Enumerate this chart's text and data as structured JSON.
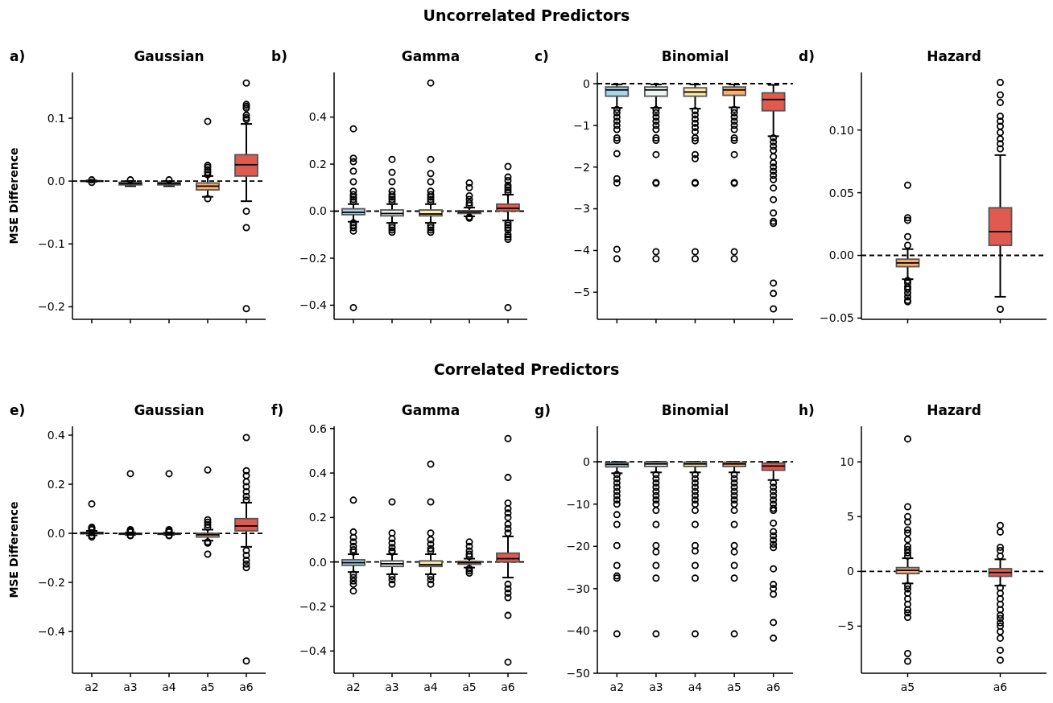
{
  "chart_data": [
    {
      "type": "box",
      "title": "Gaussian",
      "ylabel": "MSE Difference",
      "annotations": [
        "a)",
        "Uncorrelated Predictors"
      ],
      "tick_labels": "y",
      "categories": [
        null,
        null,
        null,
        null,
        null
      ],
      "colors": [
        "#a6d4e8",
        "#eef5f0",
        "#fde9a9",
        "#fdae6b",
        "#e05a50"
      ],
      "ylim": [
        -0.22,
        0.173
      ],
      "yticks": [
        {
          "value": -0.2,
          "label": "−0.2"
        },
        {
          "value": -0.1,
          "label": "−0.1"
        },
        {
          "value": 0,
          "label": "0.0"
        },
        {
          "value": 0.1,
          "label": "0.1"
        }
      ],
      "ref_lines": [
        {
          "axis": "y",
          "value": 0,
          "line_style": "dashed"
        }
      ],
      "boxes": [
        {
          "low": -0.001,
          "q1": -0.0005,
          "median": 0,
          "q3": 0.0005,
          "high": 0.001,
          "outliers": [
            0.002,
            -0.002
          ]
        },
        {
          "low": -0.008,
          "q1": -0.006,
          "median": -0.004,
          "q3": -0.002,
          "high": 0.0,
          "outliers": [
            0.002
          ]
        },
        {
          "low": -0.008,
          "q1": -0.006,
          "median": -0.004,
          "q3": -0.002,
          "high": 0.0,
          "outliers": [
            0.002
          ]
        },
        {
          "low": -0.025,
          "q1": -0.014,
          "median": -0.008,
          "q3": -0.003,
          "high": 0.008,
          "outliers": [
            0.095,
            0.025,
            0.022,
            0.018,
            0.014,
            0.01,
            -0.028
          ]
        },
        {
          "low": -0.032,
          "q1": 0.008,
          "median": 0.026,
          "q3": 0.042,
          "high": 0.091,
          "outliers": [
            0.156,
            0.122,
            0.119,
            0.116,
            0.105,
            0.101,
            0.098,
            -0.048,
            -0.074,
            -0.203
          ]
        }
      ]
    },
    {
      "type": "box",
      "title": "Gamma",
      "annotations": [
        "b)"
      ],
      "tick_labels": "y",
      "categories": [
        null,
        null,
        null,
        null,
        null
      ],
      "colors": [
        "#a6d4e8",
        "#eef5f0",
        "#fde9a9",
        "#fdae6b",
        "#e05a50"
      ],
      "ylim": [
        -0.46,
        0.59
      ],
      "yticks": [
        {
          "value": -0.4,
          "label": "−0.4"
        },
        {
          "value": -0.2,
          "label": "−0.2"
        },
        {
          "value": 0,
          "label": "0.0"
        },
        0.2,
        0.4
      ],
      "ref_lines": [
        {
          "axis": "y",
          "value": 0,
          "line_style": "dashed"
        }
      ],
      "boxes": [
        {
          "low": -0.045,
          "q1": -0.015,
          "median": -0.005,
          "q3": 0.01,
          "high": 0.03,
          "outliers": [
            0.35,
            0.225,
            0.21,
            0.17,
            0.125,
            0.085,
            0.07,
            0.06,
            0.05,
            0.04,
            -0.05,
            -0.06,
            -0.07,
            -0.085,
            -0.41
          ]
        },
        {
          "low": -0.05,
          "q1": -0.02,
          "median": -0.01,
          "q3": 0.005,
          "high": 0.03,
          "outliers": [
            0.22,
            0.165,
            0.125,
            0.085,
            0.07,
            0.06,
            0.05,
            0.04,
            -0.06,
            -0.07,
            -0.08,
            -0.09
          ]
        },
        {
          "low": -0.05,
          "q1": -0.02,
          "median": -0.012,
          "q3": 0.005,
          "high": 0.03,
          "outliers": [
            0.545,
            0.22,
            0.16,
            0.125,
            0.085,
            0.07,
            0.06,
            0.05,
            0.04,
            -0.06,
            -0.07,
            -0.08,
            -0.09
          ]
        },
        {
          "low": -0.022,
          "q1": -0.01,
          "median": -0.004,
          "q3": 0.002,
          "high": 0.015,
          "outliers": [
            0.12,
            0.1,
            0.065,
            0.05,
            0.035,
            0.025,
            -0.025,
            -0.03
          ]
        },
        {
          "low": -0.04,
          "q1": 0.0,
          "median": 0.012,
          "q3": 0.03,
          "high": 0.07,
          "outliers": [
            0.19,
            0.145,
            0.13,
            0.11,
            0.1,
            0.09,
            0.08,
            -0.05,
            -0.06,
            -0.07,
            -0.08,
            -0.1,
            -0.11,
            -0.12,
            -0.41
          ]
        }
      ]
    },
    {
      "type": "box",
      "title": "Binomial",
      "annotations": [
        "c)"
      ],
      "tick_labels": "y",
      "categories": [
        null,
        null,
        null,
        null,
        null
      ],
      "colors": [
        "#a6d4e8",
        "#eef5f0",
        "#fde9a9",
        "#fdae6b",
        "#e05a50"
      ],
      "ylim": [
        -5.65,
        0.27
      ],
      "yticks": [
        {
          "value": -5,
          "label": "−5"
        },
        {
          "value": -4,
          "label": "−4"
        },
        {
          "value": -3,
          "label": "−3"
        },
        {
          "value": -2,
          "label": "−2"
        },
        {
          "value": -1,
          "label": "−1"
        },
        0
      ],
      "ref_lines": [
        {
          "axis": "y",
          "value": 0,
          "line_style": "dashed"
        }
      ],
      "boxes": [
        {
          "low": -0.58,
          "q1": -0.3,
          "median": -0.15,
          "q3": -0.08,
          "high": -0.02,
          "outliers": [
            -0.62,
            -0.7,
            -0.8,
            -0.9,
            -1.0,
            -1.1,
            -1.3,
            -1.36,
            -1.68,
            -2.28,
            -2.38,
            -3.97,
            -4.2
          ]
        },
        {
          "low": -0.58,
          "q1": -0.3,
          "median": -0.15,
          "q3": -0.08,
          "high": -0.02,
          "outliers": [
            -0.62,
            -0.7,
            -0.8,
            -0.9,
            -1.0,
            -1.1,
            -1.3,
            -1.36,
            -1.7,
            -2.37,
            -2.39,
            -4.03,
            -4.2
          ]
        },
        {
          "low": -0.6,
          "q1": -0.3,
          "median": -0.2,
          "q3": -0.1,
          "high": -0.02,
          "outliers": [
            -0.65,
            -0.75,
            -0.85,
            -0.95,
            -1.05,
            -1.15,
            -1.3,
            -1.37,
            -1.7,
            -1.8,
            -2.37,
            -2.39,
            -4.03,
            -4.2
          ]
        },
        {
          "low": -0.57,
          "q1": -0.28,
          "median": -0.15,
          "q3": -0.08,
          "high": -0.02,
          "outliers": [
            -0.62,
            -0.7,
            -0.8,
            -0.9,
            -1.0,
            -1.1,
            -1.3,
            -1.36,
            -1.7,
            -2.37,
            -2.39,
            -4.03,
            -4.2
          ]
        },
        {
          "low": -1.26,
          "q1": -0.65,
          "median": -0.38,
          "q3": -0.22,
          "high": -0.03,
          "outliers": [
            -1.3,
            -1.4,
            -1.5,
            -1.6,
            -1.75,
            -1.9,
            -2.0,
            -2.1,
            -2.2,
            -2.3,
            -2.5,
            -2.78,
            -3.1,
            -3.3,
            -3.35,
            -4.78,
            -5.03,
            -5.4
          ]
        }
      ]
    },
    {
      "type": "box",
      "title": "Hazard",
      "annotations": [
        "d)"
      ],
      "tick_labels": "y",
      "categories": [
        null,
        null
      ],
      "colors": [
        "#fdae6b",
        "#e05a50"
      ],
      "ylim": [
        -0.051,
        0.146
      ],
      "yticks": [
        {
          "value": -0.05,
          "label": "−0.05"
        },
        {
          "value": 0,
          "label": "0.00"
        },
        {
          "value": 0.05,
          "label": "0.05"
        },
        {
          "value": 0.1,
          "label": "0.10"
        }
      ],
      "ref_lines": [
        {
          "axis": "y",
          "value": 0,
          "line_style": "dashed"
        }
      ],
      "boxes": [
        {
          "low": -0.019,
          "q1": -0.009,
          "median": -0.006,
          "q3": -0.003,
          "high": 0.005,
          "outliers": [
            0.056,
            0.03,
            0.028,
            0.015,
            0.008,
            -0.02,
            -0.022,
            -0.025,
            -0.027,
            -0.03,
            -0.033,
            -0.036,
            -0.037
          ]
        },
        {
          "low": -0.033,
          "q1": 0.008,
          "median": 0.019,
          "q3": 0.038,
          "high": 0.08,
          "outliers": [
            0.138,
            0.128,
            0.122,
            0.111,
            0.107,
            0.103,
            0.098,
            0.093,
            0.089,
            0.085,
            -0.043
          ]
        }
      ]
    },
    {
      "type": "box",
      "title": "Gaussian",
      "ylabel": "MSE Difference",
      "annotations": [
        "e)",
        "Correlated Predictors"
      ],
      "categories": [
        "a2",
        "a3",
        "a4",
        "a5",
        "a6"
      ],
      "colors": [
        "#a6d4e8",
        "#eef5f0",
        "#fde9a9",
        "#fdae6b",
        "#e05a50"
      ],
      "ylim": [
        -0.57,
        0.436
      ],
      "yticks": [
        {
          "value": -0.4,
          "label": "−0.4"
        },
        {
          "value": -0.2,
          "label": "−0.2"
        },
        {
          "value": 0,
          "label": "0.0"
        },
        0.2,
        0.4
      ],
      "ref_lines": [
        {
          "axis": "y",
          "value": 0,
          "line_style": "dashed"
        }
      ],
      "boxes": [
        {
          "low": -0.008,
          "q1": -0.002,
          "median": 0.001,
          "q3": 0.004,
          "high": 0.01,
          "outliers": [
            0.12,
            0.025,
            0.02,
            0.015,
            -0.01,
            -0.015
          ]
        },
        {
          "low": -0.006,
          "q1": -0.004,
          "median": -0.002,
          "q3": 0.0,
          "high": 0.003,
          "outliers": [
            0.243,
            0.015,
            0.01,
            0.005,
            -0.008,
            -0.01
          ]
        },
        {
          "low": -0.006,
          "q1": -0.004,
          "median": -0.002,
          "q3": 0.0,
          "high": 0.003,
          "outliers": [
            0.243,
            0.015,
            0.01,
            0.005,
            -0.008,
            -0.01
          ]
        },
        {
          "low": -0.03,
          "q1": -0.015,
          "median": -0.006,
          "q3": 0.0,
          "high": 0.015,
          "outliers": [
            0.258,
            0.055,
            0.045,
            0.035,
            0.025,
            -0.035,
            -0.04,
            -0.085
          ]
        },
        {
          "low": -0.055,
          "q1": 0.01,
          "median": 0.03,
          "q3": 0.06,
          "high": 0.125,
          "outliers": [
            0.39,
            0.255,
            0.235,
            0.21,
            0.19,
            0.17,
            0.15,
            0.135,
            -0.07,
            -0.09,
            -0.11,
            -0.125,
            -0.14,
            -0.52
          ]
        }
      ]
    },
    {
      "type": "box",
      "title": "Gamma",
      "annotations": [
        "f)"
      ],
      "categories": [
        "a2",
        "a3",
        "a4",
        "a5",
        "a6"
      ],
      "colors": [
        "#a6d4e8",
        "#eef5f0",
        "#fde9a9",
        "#fdae6b",
        "#e05a50"
      ],
      "ylim": [
        -0.5,
        0.61
      ],
      "yticks": [
        {
          "value": -0.4,
          "label": "−0.4"
        },
        {
          "value": -0.2,
          "label": "−0.2"
        },
        {
          "value": 0,
          "label": "0.0"
        },
        0.2,
        0.4,
        0.6
      ],
      "ref_lines": [
        {
          "axis": "y",
          "value": 0,
          "line_style": "dashed"
        }
      ],
      "boxes": [
        {
          "low": -0.045,
          "q1": -0.015,
          "median": -0.003,
          "q3": 0.01,
          "high": 0.035,
          "outliers": [
            0.278,
            0.135,
            0.11,
            0.09,
            0.07,
            0.055,
            0.045,
            -0.055,
            -0.07,
            -0.085,
            -0.1,
            -0.13
          ]
        },
        {
          "low": -0.055,
          "q1": -0.02,
          "median": -0.008,
          "q3": 0.005,
          "high": 0.035,
          "outliers": [
            0.27,
            0.13,
            0.105,
            0.085,
            0.065,
            0.05,
            0.045,
            -0.065,
            -0.08,
            -0.1
          ]
        },
        {
          "low": -0.055,
          "q1": -0.02,
          "median": -0.012,
          "q3": 0.005,
          "high": 0.035,
          "outliers": [
            0.44,
            0.27,
            0.13,
            0.1,
            0.08,
            0.06,
            0.05,
            -0.065,
            -0.08,
            -0.1
          ]
        },
        {
          "low": -0.025,
          "q1": -0.01,
          "median": -0.003,
          "q3": 0.003,
          "high": 0.015,
          "outliers": [
            0.09,
            0.07,
            0.05,
            0.035,
            0.025,
            -0.03,
            -0.04,
            -0.05
          ]
        },
        {
          "low": -0.07,
          "q1": 0.0,
          "median": 0.015,
          "q3": 0.04,
          "high": 0.115,
          "outliers": [
            0.555,
            0.38,
            0.265,
            0.24,
            0.22,
            0.2,
            0.17,
            0.15,
            0.13,
            -0.1,
            -0.12,
            -0.14,
            -0.16,
            -0.24,
            -0.45
          ]
        }
      ]
    },
    {
      "type": "box",
      "title": "Binomial",
      "annotations": [
        "g)"
      ],
      "categories": [
        "a2",
        "a3",
        "a4",
        "a5",
        "a6"
      ],
      "colors": [
        "#a6d4e8",
        "#eef5f0",
        "#fde9a9",
        "#fdae6b",
        "#e05a50"
      ],
      "ylim": [
        -50,
        8.4
      ],
      "yticks": [
        {
          "value": -50,
          "label": "−50"
        },
        {
          "value": -40,
          "label": "−40"
        },
        {
          "value": -30,
          "label": "−30"
        },
        {
          "value": -20,
          "label": "−20"
        },
        {
          "value": -10,
          "label": "−10"
        },
        0
      ],
      "ref_lines": [
        {
          "axis": "y",
          "value": 0,
          "line_style": "dashed"
        }
      ],
      "boxes": [
        {
          "low": -2.7,
          "q1": -1.2,
          "median": -0.6,
          "q3": -0.2,
          "high": 0,
          "outliers": [
            -3,
            -4,
            -5,
            -6,
            -7,
            -8,
            -9,
            -10,
            -12.5,
            -14.8,
            -19.8,
            -24.5,
            -27,
            -27.5,
            -40.7
          ]
        },
        {
          "low": -2.5,
          "q1": -1.1,
          "median": -0.5,
          "q3": -0.1,
          "high": 0,
          "outliers": [
            -3,
            -4,
            -5,
            -6,
            -7,
            -8,
            -9,
            -10,
            -11.5,
            -14.8,
            -19.8,
            -21.3,
            -24.5,
            -27.5,
            -40.7
          ]
        },
        {
          "low": -2.5,
          "q1": -1.1,
          "median": -0.5,
          "q3": -0.1,
          "high": 0,
          "outliers": [
            -3,
            -4,
            -5,
            -6,
            -7,
            -8,
            -9,
            -10,
            -11.5,
            -14.8,
            -19.8,
            -21.1,
            -24.5,
            -27.5,
            -40.7
          ]
        },
        {
          "low": -2.5,
          "q1": -1.1,
          "median": -0.5,
          "q3": -0.1,
          "high": 0,
          "outliers": [
            -3,
            -4,
            -5,
            -6,
            -7,
            -8,
            -9,
            -10,
            -11.5,
            -14.8,
            -19.8,
            -21.3,
            -24.5,
            -27.5,
            -40.7
          ]
        },
        {
          "low": -4.3,
          "q1": -2,
          "median": -1,
          "q3": -0.3,
          "high": 0,
          "outliers": [
            -5,
            -6,
            -7,
            -8,
            -9,
            -10,
            -11,
            -11.5,
            -14.5,
            -16.5,
            -17.5,
            -18.5,
            -19.5,
            -20.3,
            -25.3,
            -29,
            -30,
            -31.3,
            -38,
            -41.7
          ]
        }
      ]
    },
    {
      "type": "box",
      "title": "Hazard",
      "annotations": [
        "h)"
      ],
      "categories": [
        "a5",
        "a6"
      ],
      "colors": [
        "#fdae6b",
        "#e05a50"
      ],
      "ylim": [
        -9.3,
        13.25
      ],
      "yticks": [
        {
          "value": -5,
          "label": "−5"
        },
        0,
        5,
        10
      ],
      "ref_lines": [
        {
          "axis": "y",
          "value": 0,
          "line_style": "dashed"
        }
      ],
      "boxes": [
        {
          "low": -1.1,
          "q1": -0.2,
          "median": 0.1,
          "q3": 0.35,
          "high": 1.2,
          "outliers": [
            12.1,
            5.9,
            5,
            4.5,
            3.8,
            3.5,
            2.9,
            2.3,
            2,
            1.7,
            1.4,
            -1.3,
            -1.6,
            -2,
            -2.5,
            -3,
            -3.5,
            -3.8,
            -4.2,
            -7.5,
            -8.2
          ]
        },
        {
          "low": -1.3,
          "q1": -0.45,
          "median": -0.1,
          "q3": 0.25,
          "high": 1.1,
          "outliers": [
            4.2,
            3.6,
            2.2,
            1.9,
            1.4,
            -1.5,
            -2,
            -2.5,
            -3,
            -3.5,
            -4,
            -4.3,
            -4.7,
            -5,
            -5.5,
            -6.1,
            -7.2,
            -8.1
          ]
        }
      ]
    }
  ]
}
